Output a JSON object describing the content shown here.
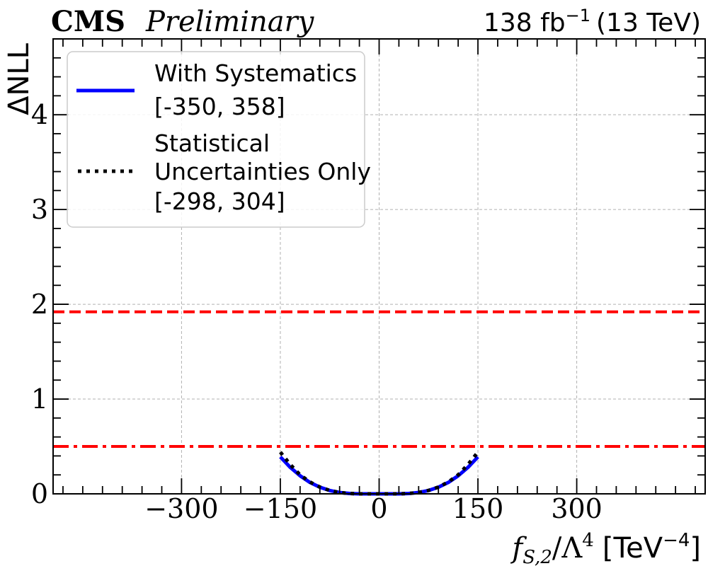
{
  "header": {
    "experiment": "CMS",
    "status": "Preliminary",
    "lumi_value": "138 fb",
    "lumi_exponent": "−1",
    "energy": "(13 TeV)"
  },
  "chart_data": {
    "type": "line",
    "xlabel": {
      "var": "f",
      "sub": "S,2",
      "over": "/Λ",
      "pow": "4",
      "unit": "[TeV",
      "unit_pow": "−4",
      "unit_close": "]"
    },
    "ylabel": "ΔNLL",
    "xlim": [
      -495,
      495
    ],
    "ylim": [
      0,
      4.8
    ],
    "x_ticks": [
      -300,
      -150,
      0,
      150,
      300
    ],
    "x_tick_labels": [
      "−300",
      "−150",
      "0",
      "150",
      "300"
    ],
    "x_minor_step": 30,
    "y_ticks": [
      0,
      1,
      2,
      3,
      4
    ],
    "y_tick_labels": [
      "0",
      "1",
      "2",
      "3",
      "4"
    ],
    "y_minor_step": 0.2,
    "grid": true,
    "legend_position": "top-left",
    "reference_lines": [
      {
        "y": 1.92,
        "style": "dashed",
        "color": "#ff0000"
      },
      {
        "y": 0.5,
        "style": "dashdot",
        "color": "#ff0000"
      }
    ],
    "series": [
      {
        "name": "With Systematics",
        "interval": "[-350, 358]",
        "color": "#0000ff",
        "style": "solid",
        "x": [
          -150,
          -135,
          -120,
          -105,
          -90,
          -75,
          -60,
          -45,
          -30,
          -15,
          0,
          15,
          30,
          45,
          60,
          75,
          90,
          105,
          120,
          135,
          150
        ],
        "y": [
          0.39,
          0.28,
          0.19,
          0.12,
          0.07,
          0.035,
          0.014,
          0.004,
          0.0,
          0.0,
          0.0,
          0.0,
          0.0,
          0.004,
          0.014,
          0.035,
          0.07,
          0.12,
          0.19,
          0.28,
          0.39
        ]
      },
      {
        "name_lines": [
          "Statistical",
          "Uncertainties Only"
        ],
        "interval": "[-298, 304]",
        "color": "#000000",
        "style": "dotted",
        "x": [
          -150,
          -135,
          -120,
          -105,
          -90,
          -75,
          -60,
          -45,
          -30,
          -15,
          0,
          15,
          30,
          45,
          60,
          75,
          90,
          105,
          120,
          135,
          150
        ],
        "y": [
          0.44,
          0.31,
          0.2,
          0.125,
          0.072,
          0.036,
          0.014,
          0.004,
          0.0,
          0.0,
          0.0,
          0.0,
          0.0,
          0.004,
          0.014,
          0.036,
          0.072,
          0.125,
          0.2,
          0.31,
          0.44
        ]
      }
    ]
  }
}
